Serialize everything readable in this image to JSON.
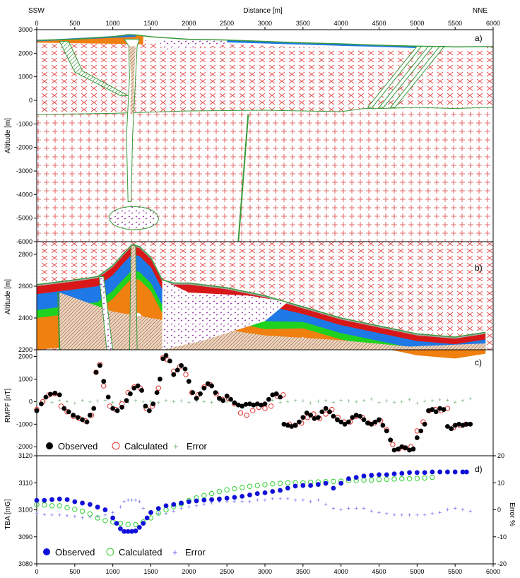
{
  "figure": {
    "dir_left": "SSW",
    "dir_right": "NNE",
    "top_xlabel": "Distance [m]",
    "x_ticks": [
      0,
      500,
      1000,
      1500,
      2000,
      2500,
      3000,
      3500,
      4000,
      4500,
      5000,
      5500,
      6000
    ]
  },
  "panels": {
    "a": {
      "label": "a)",
      "ylabel": "Altitude  [m]",
      "yticks": [
        3000,
        2000,
        1000,
        0,
        -1000,
        -2000,
        -3000,
        -4000,
        -5000,
        -6000
      ]
    },
    "b": {
      "label": "b)",
      "ylabel": "Altitude [m]",
      "yticks": [
        2800,
        2600,
        2400,
        2200
      ]
    },
    "c": {
      "label": "c)",
      "ylabel": "RMPF [nT]",
      "yticks": [
        2000,
        1000,
        0,
        -1000,
        -2000
      ],
      "legend": {
        "observed": "Observed",
        "calculated": "Calculated",
        "error": "Error"
      }
    },
    "d": {
      "label": "d)",
      "ylabel": "TBA [mG]",
      "yticks": [
        3120,
        3110,
        3100,
        3090,
        3080
      ],
      "y2label": "Error %",
      "y2ticks": [
        20,
        10,
        0,
        -10,
        -20
      ],
      "legend": {
        "observed": "Observed",
        "calculated": "Calculated",
        "error": "Error"
      }
    }
  },
  "colors": {
    "basement": "#e0403f",
    "red_layer": "#d81818",
    "blue_layer": "#1e78e6",
    "green_layer": "#1fd21f",
    "orange_layer": "#f08010",
    "grey_layer": "#a8a8a8",
    "intrusion": "#8a1fa0",
    "outline": "#3a9a3a",
    "observed_c": "#000000",
    "calc_c": "#e03030",
    "err_c": "#7ab07a",
    "observed_d": "#1010d8",
    "calc_d": "#30d030",
    "err_d": "#6a6af0"
  },
  "chart_data": [
    {
      "type": "cross-section",
      "panel": "a",
      "xlim": [
        0,
        6000
      ],
      "ylim": [
        -6000,
        3000
      ],
      "topography": {
        "x": [
          0,
          500,
          1000,
          1200,
          1300,
          1500,
          2000,
          2500,
          3000,
          3500,
          4000,
          4500,
          5000,
          5500,
          5900
        ],
        "y": [
          2550,
          2600,
          2700,
          2790,
          2780,
          2700,
          2590,
          2560,
          2500,
          2440,
          2400,
          2340,
          2300,
          2270,
          2280
        ]
      },
      "basement_top": {
        "x": [
          0,
          1000,
          2000,
          3000,
          4000,
          4300,
          4500,
          5000,
          5500,
          5900
        ],
        "y": [
          -600,
          -550,
          -450,
          -420,
          -480,
          -350,
          -350,
          -300,
          -350,
          -300
        ]
      }
    },
    {
      "type": "cross-section",
      "panel": "b",
      "xlim": [
        0,
        6000
      ],
      "ylim": [
        2200,
        2880
      ],
      "topography": {
        "x": [
          0,
          500,
          800,
          1000,
          1150,
          1250,
          1350,
          1500,
          1650,
          1800,
          2000,
          2500,
          3000,
          3500,
          4000,
          4500,
          5000,
          5500,
          5900
        ],
        "y": [
          2610,
          2640,
          2660,
          2730,
          2810,
          2860,
          2850,
          2780,
          2640,
          2620,
          2620,
          2590,
          2540,
          2470,
          2400,
          2350,
          2300,
          2280,
          2310
        ]
      }
    },
    {
      "type": "scatter",
      "panel": "c",
      "xlabel": "",
      "ylabel": "RMPF [nT]",
      "xlim": [
        0,
        6000
      ],
      "ylim": [
        -2400,
        2300
      ],
      "series": [
        {
          "name": "Observed",
          "x": [
            0,
            60,
            120,
            180,
            240,
            300,
            360,
            420,
            480,
            540,
            600,
            660,
            700,
            750,
            780,
            830,
            880,
            940,
            1000,
            1060,
            1120,
            1180,
            1230,
            1280,
            1330,
            1380,
            1430,
            1480,
            1530,
            1580,
            1620,
            1660,
            1700,
            1750,
            1800,
            1850,
            1900,
            1950,
            2000,
            2050,
            2100,
            2150,
            2200,
            2250,
            2300,
            2350,
            2400,
            2450,
            2500,
            2550,
            2600,
            2650,
            2700,
            2750,
            2800,
            2850,
            2900,
            2950,
            3000,
            3050,
            3100,
            3150,
            3200,
            3250,
            3300,
            3350,
            3400,
            3450,
            3500,
            3550,
            3600,
            3650,
            3700,
            3750,
            3800,
            3850,
            3900,
            3950,
            4000,
            4050,
            4100,
            4150,
            4200,
            4250,
            4300,
            4350,
            4400,
            4450,
            4500,
            4550,
            4600,
            4650,
            4700,
            4750,
            4800,
            4850,
            4900,
            4950,
            5000,
            5050,
            5100,
            5150,
            5200,
            5250,
            5300,
            5350,
            5400,
            5450,
            5500,
            5550,
            5600,
            5650,
            5700
          ],
          "y": [
            -400,
            -100,
            200,
            330,
            380,
            300,
            -300,
            -450,
            -600,
            -700,
            -800,
            -900,
            -600,
            -300,
            1300,
            1600,
            900,
            200,
            -300,
            -400,
            -250,
            50,
            350,
            600,
            700,
            500,
            -200,
            -400,
            -100,
            400,
            1000,
            1900,
            2050,
            1800,
            1200,
            1400,
            1600,
            1450,
            900,
            400,
            150,
            350,
            600,
            800,
            700,
            400,
            150,
            50,
            250,
            100,
            -50,
            -150,
            -200,
            -120,
            -100,
            -150,
            -100,
            -150,
            -100,
            100,
            300,
            350,
            200,
            -1000,
            -1050,
            -1100,
            -1050,
            -900,
            -700,
            -500,
            -600,
            -750,
            -700,
            -450,
            -300,
            -450,
            -650,
            -800,
            -900,
            -1000,
            -900,
            -700,
            -600,
            -650,
            -800,
            -950,
            -1000,
            -900,
            -800,
            -1050,
            -1300,
            -1700,
            -2150,
            -2100,
            -2000,
            -2050,
            -2150,
            -2100,
            -1600,
            -1300,
            -1000,
            -400,
            -350,
            -450,
            -300,
            -350,
            -1100,
            -1200,
            -1050,
            -1000,
            -1050,
            -1000,
            -1000
          ]
        },
        {
          "name": "Calculated",
          "x": [
            0,
            80,
            160,
            240,
            320,
            400,
            480,
            560,
            640,
            720,
            780,
            830,
            880,
            960,
            1040,
            1120,
            1200,
            1280,
            1360,
            1440,
            1520,
            1600,
            1660,
            1720,
            1800,
            1880,
            1960,
            2040,
            2120,
            2200,
            2280,
            2360,
            2440,
            2520,
            2600,
            2680,
            2760,
            2840,
            2920,
            3000,
            3080,
            3160,
            3240,
            3320,
            3400,
            3480,
            3560,
            3640,
            3720,
            3800,
            3880,
            3960,
            4040,
            4120,
            4200,
            4280,
            4360,
            4440,
            4520,
            4600,
            4680,
            4760,
            4840,
            4920,
            5000,
            5080,
            5160,
            5240,
            5320,
            5400,
            5480,
            5560,
            5640
          ],
          "y": [
            -350,
            0,
            300,
            350,
            -200,
            -450,
            -650,
            -750,
            -850,
            -600,
            1300,
            1650,
            700,
            -200,
            -350,
            -100,
            400,
            650,
            600,
            -300,
            -200,
            600,
            1950,
            1850,
            1350,
            1550,
            1200,
            400,
            300,
            650,
            750,
            350,
            100,
            150,
            -100,
            -500,
            -600,
            -400,
            -250,
            -300,
            -200,
            250,
            300,
            -1000,
            -1050,
            -950,
            -700,
            -550,
            -750,
            -550,
            -350,
            -700,
            -900,
            -900,
            -650,
            -700,
            -950,
            -950,
            -850,
            -1250,
            -1900,
            -2100,
            -2050,
            -2000,
            -1300,
            -900,
            -400,
            -350,
            -400,
            -300,
            -1150,
            -1050,
            -1000
          ]
        },
        {
          "name": "Error",
          "x": [
            0,
            100,
            200,
            300,
            400,
            500,
            600,
            700,
            800,
            900,
            1000,
            1100,
            1200,
            1300,
            1400,
            1500,
            1600,
            1700,
            1800,
            1900,
            2000,
            2100,
            2200,
            2300,
            2400,
            2500,
            2600,
            2700,
            2800,
            2900,
            3000,
            3100,
            3200,
            3300,
            3400,
            3500,
            3600,
            3700,
            3800,
            3900,
            4000,
            4100,
            4200,
            4300,
            4400,
            4500,
            4600,
            4700,
            4800,
            4900,
            5000,
            5100,
            5200,
            5300,
            5400,
            5500,
            5600,
            5700
          ],
          "y": [
            -50,
            20,
            -30,
            40,
            0,
            -60,
            50,
            -20,
            30,
            60,
            -40,
            10,
            -30,
            40,
            -20,
            20,
            -50,
            40,
            -10,
            30,
            -40,
            20,
            0,
            -30,
            50,
            -20,
            -150,
            -250,
            -180,
            -100,
            -50,
            60,
            -30,
            -20,
            40,
            30,
            -60,
            20,
            50,
            -40,
            60,
            30,
            -20,
            40,
            100,
            -50,
            30,
            -40,
            -20,
            80,
            -60,
            20,
            40,
            80,
            60,
            -30,
            40,
            120
          ]
        }
      ]
    },
    {
      "type": "scatter",
      "panel": "d",
      "xlabel": "",
      "ylabel": "TBA [mG]",
      "y2label": "Error %",
      "xlim": [
        0,
        6000
      ],
      "ylim": [
        3080,
        3120
      ],
      "y2lim": [
        -20,
        20
      ],
      "series": [
        {
          "name": "Observed",
          "x": [
            0,
            100,
            200,
            300,
            400,
            500,
            600,
            700,
            800,
            900,
            1000,
            1050,
            1100,
            1150,
            1200,
            1250,
            1300,
            1350,
            1400,
            1450,
            1500,
            1600,
            1700,
            1800,
            1900,
            2000,
            2100,
            2200,
            2300,
            2400,
            2500,
            2600,
            2700,
            2800,
            2900,
            3000,
            3100,
            3200,
            3300,
            3400,
            3500,
            3600,
            3700,
            3800,
            3900,
            4000,
            4100,
            4200,
            4300,
            4400,
            4500,
            4600,
            4700,
            4800,
            4900,
            5000,
            5100,
            5200,
            5300,
            5400,
            5500,
            5600,
            5650
          ],
          "y": [
            3103.5,
            3103.5,
            3103.8,
            3104,
            3103.8,
            3103,
            3102.5,
            3102,
            3101,
            3100,
            3097,
            3095,
            3093,
            3092,
            3092,
            3092,
            3092.2,
            3093.5,
            3095,
            3097,
            3099,
            3100.5,
            3101.5,
            3102,
            3102.5,
            3103,
            3103.3,
            3103.6,
            3103.8,
            3104,
            3104.3,
            3104.6,
            3105,
            3105.5,
            3106,
            3106.3,
            3106.8,
            3107.2,
            3108,
            3108.8,
            3109,
            3109,
            3109.4,
            3109.8,
            3108,
            3109.8,
            3111.5,
            3112,
            3112.5,
            3112.8,
            3113,
            3113,
            3113.3,
            3113.5,
            3113.8,
            3113.8,
            3113.8,
            3114,
            3114,
            3114,
            3114,
            3114,
            3114
          ]
        },
        {
          "name": "Calculated",
          "x": [
            0,
            100,
            200,
            300,
            400,
            500,
            600,
            700,
            800,
            900,
            1000,
            1100,
            1200,
            1300,
            1400,
            1500,
            1600,
            1700,
            1800,
            1900,
            2000,
            2100,
            2200,
            2300,
            2400,
            2500,
            2600,
            2700,
            2800,
            2900,
            3000,
            3100,
            3200,
            3300,
            3400,
            3500,
            3600,
            3700,
            3800,
            3900,
            4000,
            4100,
            4200,
            4300,
            4400,
            4500,
            4600,
            4700,
            4800,
            4900,
            5000,
            5100,
            5200
          ],
          "y": [
            3102,
            3101.8,
            3101.5,
            3101.5,
            3100.8,
            3100.2,
            3099.5,
            3098.5,
            3097,
            3096,
            3095.5,
            3095,
            3094.6,
            3094.5,
            3095.5,
            3097,
            3098.8,
            3100,
            3101.2,
            3102.2,
            3103.4,
            3104.4,
            3105.3,
            3106,
            3106.8,
            3107.4,
            3107.8,
            3108.2,
            3108.7,
            3109,
            3109.3,
            3109.6,
            3109.8,
            3110,
            3110,
            3110,
            3110.2,
            3110.3,
            3110.4,
            3110.5,
            3110.6,
            3110.8,
            3110.8,
            3111,
            3111,
            3111.2,
            3111.3,
            3111.4,
            3111.5,
            3111.5,
            3111.6,
            3111.8,
            3112
          ]
        },
        {
          "name": "Error",
          "x": [
            0,
            100,
            200,
            300,
            400,
            500,
            600,
            700,
            800,
            900,
            1000,
            1100,
            1150,
            1200,
            1250,
            1300,
            1350,
            1400,
            1500,
            1600,
            1700,
            1800,
            1900,
            2000,
            2100,
            2200,
            2300,
            2400,
            2500,
            2600,
            2700,
            2800,
            2900,
            3000,
            3100,
            3200,
            3300,
            3400,
            3500,
            3600,
            3700,
            3800,
            3900,
            4000,
            4100,
            4200,
            4300,
            4400,
            4500,
            4600,
            4700,
            4800,
            4900,
            5000,
            5100,
            5200,
            5300,
            5400,
            5500,
            5600,
            5700
          ],
          "y": [
            -1.5,
            -1.8,
            -2,
            -2,
            -2.2,
            -2.5,
            -3,
            -2.8,
            -2.6,
            -2,
            -1,
            1,
            3,
            3.5,
            3.5,
            3.5,
            3,
            0.5,
            -1,
            -1.5,
            -1.5,
            -0.5,
            0.5,
            1,
            1.5,
            2,
            2.5,
            3,
            3,
            3,
            3,
            3,
            3.5,
            3.5,
            4,
            4,
            4,
            3.5,
            3.5,
            3,
            3.5,
            2,
            0.5,
            0,
            0.5,
            0.5,
            0.5,
            -0.5,
            -1,
            -1.5,
            -2,
            -2,
            -2,
            -2,
            -2,
            -1.5,
            -1,
            0,
            0.5,
            0,
            -0.5
          ]
        }
      ]
    }
  ]
}
